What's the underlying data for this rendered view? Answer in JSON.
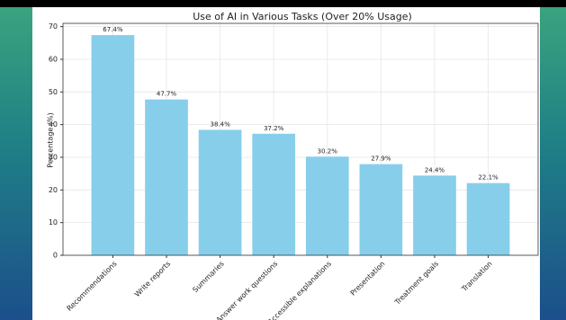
{
  "chart_data": {
    "type": "bar",
    "title": "Use of AI in Various Tasks (Over 20% Usage)",
    "y_label": "Percentage (%)",
    "categories": [
      "Recommendations",
      "Write reports",
      "Summaries",
      "Answer work questions",
      "Accessible explanations",
      "Presentation",
      "Treatment goals",
      "Translation"
    ],
    "values": [
      67.4,
      47.7,
      38.4,
      37.2,
      30.2,
      27.9,
      24.4,
      22.1
    ],
    "value_labels": [
      "67.4%",
      "47.7%",
      "38.4%",
      "37.2%",
      "30.2%",
      "27.9%",
      "24.4%",
      "22.1%"
    ],
    "color": "#87ceeb",
    "ylim": [
      0,
      71
    ],
    "yticks": [
      0,
      10,
      20,
      30,
      40,
      50,
      60,
      70
    ],
    "grid": true
  }
}
